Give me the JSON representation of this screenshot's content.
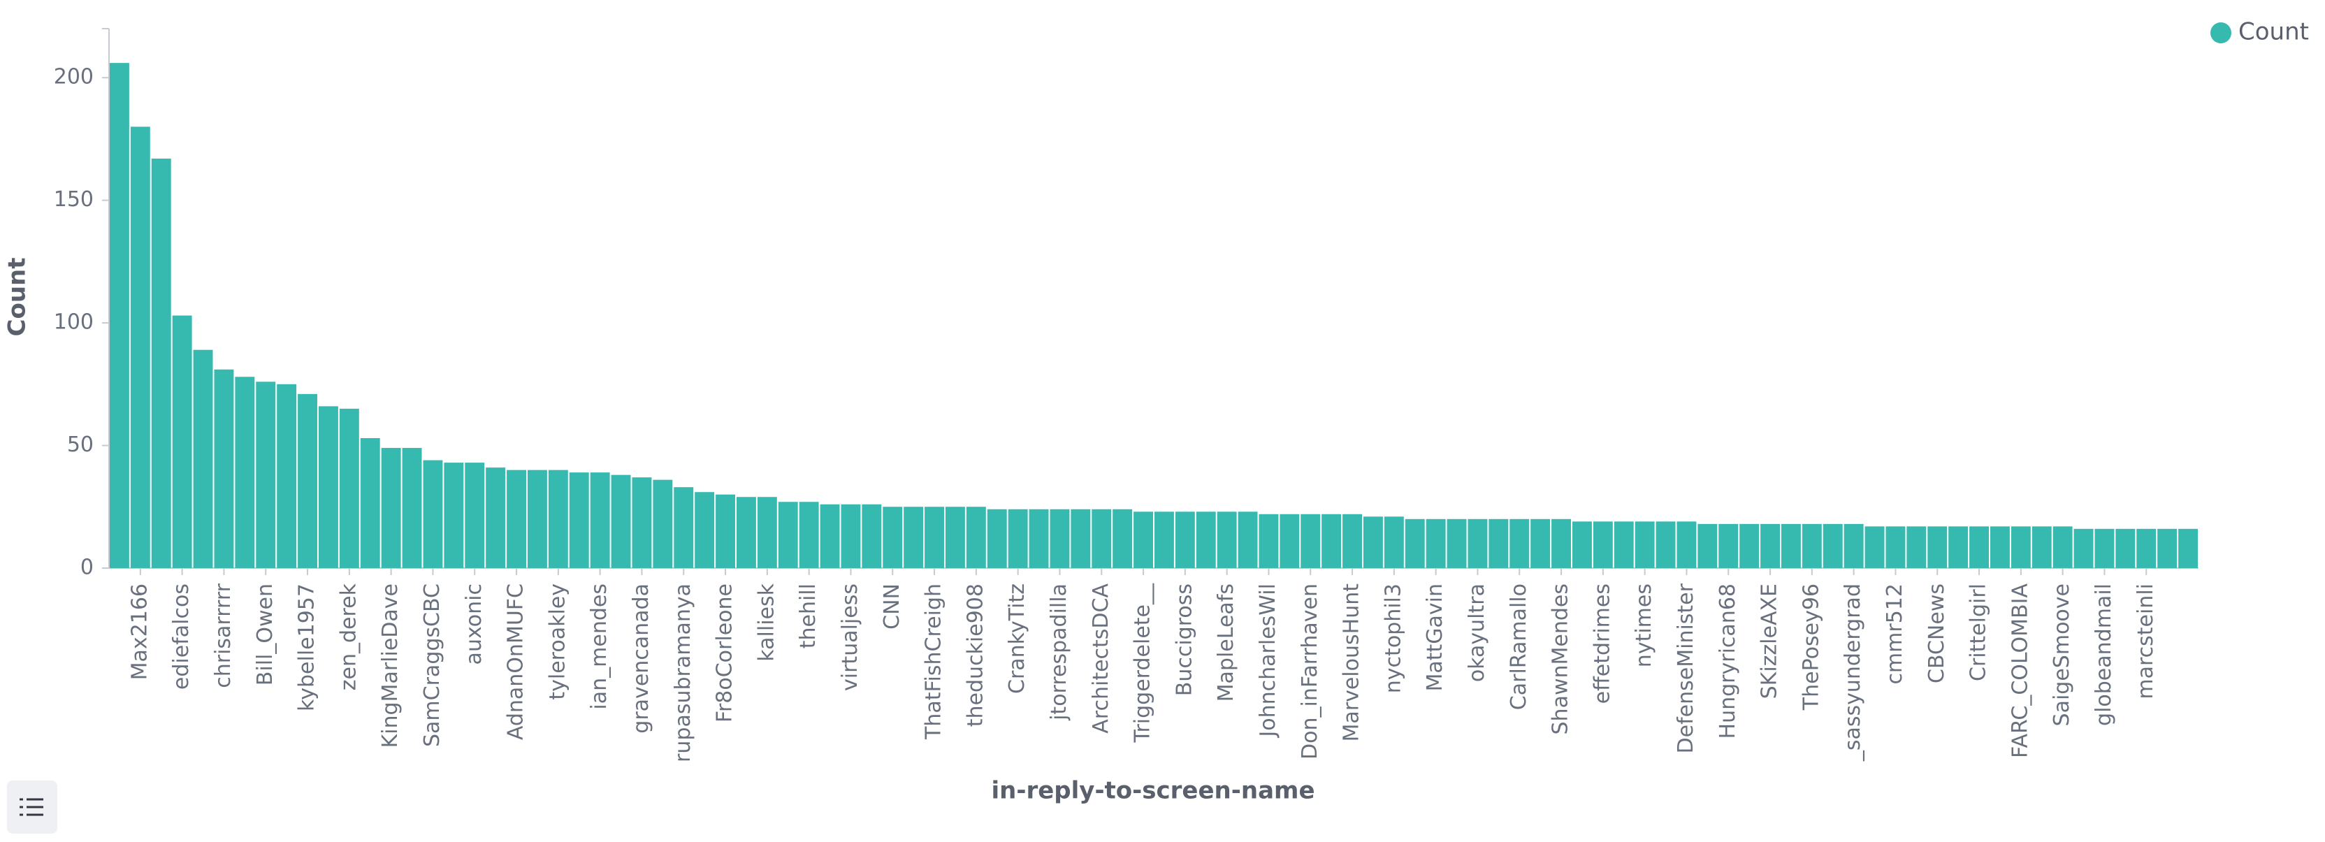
{
  "chart_data": {
    "type": "bar",
    "ylabel": "Count",
    "xlabel": "in-reply-to-screen-name",
    "legend": "top-right",
    "series": [
      {
        "name": "Count",
        "color": "#36b9ae",
        "values": [
          206,
          180,
          167,
          103,
          89,
          81,
          78,
          76,
          75,
          71,
          66,
          65,
          53,
          49,
          49,
          44,
          43,
          43,
          41,
          40,
          40,
          40,
          39,
          39,
          38,
          37,
          36,
          33,
          31,
          30,
          29,
          29,
          27,
          27,
          26,
          26,
          26,
          25,
          25,
          25,
          25,
          25,
          24,
          24,
          24,
          24,
          24,
          24,
          24,
          23,
          23,
          23,
          23,
          23,
          23,
          22,
          22,
          22,
          22,
          22,
          21,
          21,
          20,
          20,
          20,
          20,
          20,
          20,
          20,
          20,
          19,
          19,
          19,
          19,
          19,
          19,
          18,
          18,
          18,
          18,
          18,
          18,
          18,
          18,
          17,
          17,
          17,
          17,
          17,
          17,
          17,
          17,
          17,
          17,
          16,
          16,
          16,
          16,
          16,
          16
        ]
      }
    ],
    "categories": [
      null,
      "Max2166",
      null,
      "ediefalcos",
      null,
      "chrisarrrrr",
      null,
      "Bill_Owen",
      null,
      "kybelle1957",
      null,
      "zen_derek",
      null,
      "KingMarlieDave",
      null,
      "SamCraggsCBC",
      null,
      "auxonic",
      null,
      "AdnanOnMUFC",
      null,
      "tyleroakley",
      null,
      "ian_mendes",
      null,
      "gravencanada",
      null,
      "rupasubramanya",
      null,
      "Fr8oCorleone",
      null,
      "kalliesk",
      null,
      "thehill",
      null,
      "virtualjess",
      null,
      "CNN",
      null,
      "ThatFishCreigh",
      null,
      "theduckie908",
      null,
      "CrankyTitz",
      null,
      "jtorrespadilla",
      null,
      "ArchitectsDCA",
      null,
      "Triggerdelete__",
      null,
      "Buccigross",
      null,
      "MapleLeafs",
      null,
      "JohncharlesWil",
      null,
      "Don_inFarrhaven",
      null,
      "MarvelousHunt",
      null,
      "nyctophil3",
      null,
      "MattGavin",
      null,
      "okayultra",
      null,
      "CarlRamallo",
      null,
      "ShawnMendes",
      null,
      "effetdrimes",
      null,
      "nytimes",
      null,
      "DefenseMinister",
      null,
      "Hungryrican68",
      null,
      "SKizzleAXE",
      null,
      "ThePosey96",
      null,
      "_sassyundergrad",
      null,
      "cmmr512",
      null,
      "CBCNews",
      null,
      "Crittelgirl",
      null,
      "FARC_COLOMBIA",
      null,
      "SaigeSmoove",
      null,
      "globeandmail",
      null,
      "marcsteinli",
      null,
      null
    ],
    "ylim": [
      0,
      220
    ],
    "yticks": [
      0,
      50,
      100,
      150,
      200
    ]
  }
}
